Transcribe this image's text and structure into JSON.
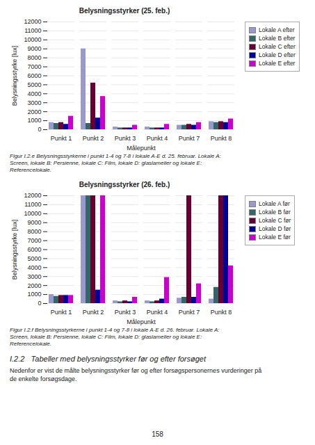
{
  "chart_data": [
    {
      "type": "bar",
      "title": "Belysningsstyrker (25. feb.)",
      "caption": "Figur I.2.e Belysningsstyrkerne i punkt 1-4 og 7-8 i lokale A-E d. 25. februar. Lokale A:\nScreen, lokale B: Persienne, lokale C: Film, lokale D: glaslameller og lokale E:\nReferencelokale.",
      "categories": [
        "Punkt 1",
        "Punkt 2",
        "Punkt 3",
        "Punkt 4",
        "Punkt 7",
        "Punkt 8"
      ],
      "series": [
        {
          "name": "Lokale A efter",
          "color": "#9999CC",
          "values": [
            800,
            9000,
            300,
            300,
            500,
            900
          ]
        },
        {
          "name": "Lokale B efter",
          "color": "#336666",
          "values": [
            700,
            700,
            200,
            200,
            500,
            800
          ]
        },
        {
          "name": "Lokale C efter",
          "color": "#660033",
          "values": [
            800,
            5200,
            200,
            200,
            600,
            900
          ]
        },
        {
          "name": "Lokale D efter",
          "color": "#000099",
          "values": [
            600,
            1300,
            200,
            200,
            500,
            800
          ]
        },
        {
          "name": "Lokale E efter",
          "color": "#CC00CC",
          "values": [
            1500,
            3700,
            500,
            600,
            800,
            1200
          ]
        }
      ],
      "xlabel": "Målepunkt",
      "ylabel": "Belysningsstyrke [lux]",
      "ylim": [
        0,
        12000
      ],
      "yticks": [
        0,
        1000,
        2000,
        3000,
        4000,
        5000,
        6000,
        7000,
        8000,
        9000,
        10000,
        11000,
        12000
      ],
      "grid": true,
      "legend": "right"
    },
    {
      "type": "bar",
      "title": "Belysningsstyrker (26. feb.)",
      "caption": "Figur I.2.f Belysningsstyrkerne i punkt 1-4 og 7-8 i lokale A-E d. 26. februar. Lokale A:\nScreen, lokale B: Persienne, lokale C: Film, lokale D: glaslameller og lokale E:\nReferencelokale.",
      "categories": [
        "Punkt 1",
        "Punkt 2",
        "Punkt 3",
        "Punkt 4",
        "Punkt 7",
        "Punkt 8"
      ],
      "series": [
        {
          "name": "Lokale A før",
          "color": "#9999CC",
          "values": [
            1000,
            12000,
            300,
            300,
            600,
            500
          ]
        },
        {
          "name": "Lokale B før",
          "color": "#336666",
          "values": [
            800,
            12000,
            200,
            200,
            700,
            1800
          ]
        },
        {
          "name": "Lokale C før",
          "color": "#660033",
          "values": [
            900,
            12000,
            300,
            300,
            12000,
            12000
          ]
        },
        {
          "name": "Lokale D før",
          "color": "#000099",
          "values": [
            900,
            1500,
            200,
            500,
            700,
            12000
          ]
        },
        {
          "name": "Lokale E før",
          "color": "#CC00CC",
          "values": [
            900,
            12000,
            700,
            2900,
            2200,
            4200
          ]
        }
      ],
      "xlabel": "Målepunkt",
      "ylabel": "Belysningsstyrke [lux]",
      "ylim": [
        0,
        12000
      ],
      "yticks": [
        0,
        1000,
        2000,
        3000,
        4000,
        5000,
        6000,
        7000,
        8000,
        9000,
        10000,
        11000,
        12000
      ],
      "grid": true,
      "legend": "right"
    }
  ],
  "annotations": [
    "I.2.2   Tabeller med belysningsstyrker før og efter forsøget",
    "Nedenfor er vist de målte belysningsstyrker før og efter forsøgspersonernes vurderinger på\nde enkelte forsøgsdage.",
    "158"
  ]
}
